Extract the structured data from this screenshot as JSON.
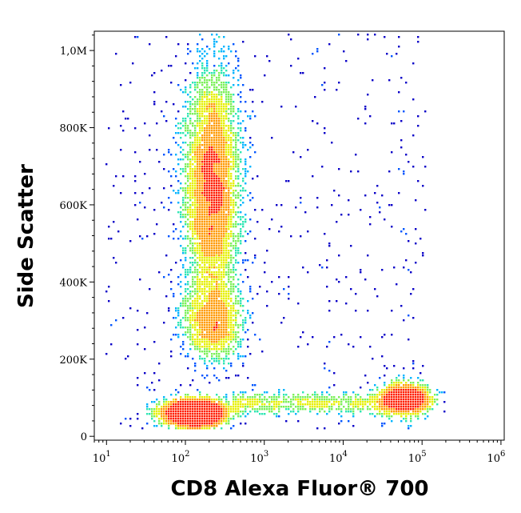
{
  "chart_data": {
    "type": "scatter",
    "subtype": "flow-cytometry-density-dot-plot",
    "title": "",
    "xlabel": "CD8 Alexa Fluor® 700",
    "ylabel": "Side Scatter",
    "x_scale": "log",
    "xlim": [
      7,
      1100000
    ],
    "ylim": [
      -10000,
      1050000
    ],
    "x_ticks": [
      {
        "value": 10,
        "base": "10",
        "exp": "1"
      },
      {
        "value": 100,
        "base": "10",
        "exp": "2"
      },
      {
        "value": 1000,
        "base": "10",
        "exp": "3"
      },
      {
        "value": 10000,
        "base": "10",
        "exp": "4"
      },
      {
        "value": 100000,
        "base": "10",
        "exp": "5"
      },
      {
        "value": 1000000,
        "base": "10",
        "exp": "6"
      }
    ],
    "y_ticks": [
      {
        "value": 0,
        "label": "0"
      },
      {
        "value": 200000,
        "label": "200K"
      },
      {
        "value": 400000,
        "label": "400K"
      },
      {
        "value": 600000,
        "label": "600K"
      },
      {
        "value": 800000,
        "label": "800K"
      },
      {
        "value": 1000000,
        "label": "1,0M"
      }
    ],
    "grid": false,
    "legend": "none",
    "density_colors": [
      "#0a00c8",
      "#0055ff",
      "#00b4ff",
      "#2ee6b4",
      "#7cf05a",
      "#e6f000",
      "#ff9a00",
      "#ff1e00"
    ],
    "populations": [
      {
        "name": "CD8- high side scatter",
        "x_center": 220,
        "y_center": 640000,
        "x_spread_log": 0.17,
        "y_spread": 150000,
        "count": 5200
      },
      {
        "name": "CD8- intermediate side scatter",
        "x_center": 230,
        "y_center": 300000,
        "x_spread_log": 0.19,
        "y_spread": 50000,
        "count": 1400
      },
      {
        "name": "CD8- low side scatter",
        "x_center": 130,
        "y_center": 60000,
        "x_spread_log": 0.2,
        "y_spread": 17000,
        "count": 3200
      },
      {
        "name": "CD8+ low side scatter",
        "x_center": 60000,
        "y_center": 95000,
        "x_spread_log": 0.16,
        "y_spread": 20000,
        "count": 1600
      },
      {
        "name": "bridge",
        "x_min": 400,
        "x_max": 40000,
        "y_center": 85000,
        "y_spread": 14000,
        "count": 700
      },
      {
        "name": "scattered background",
        "x_min": 10,
        "x_max": 120000,
        "y_min": 0,
        "y_max": 1050000,
        "count": 550
      }
    ]
  }
}
